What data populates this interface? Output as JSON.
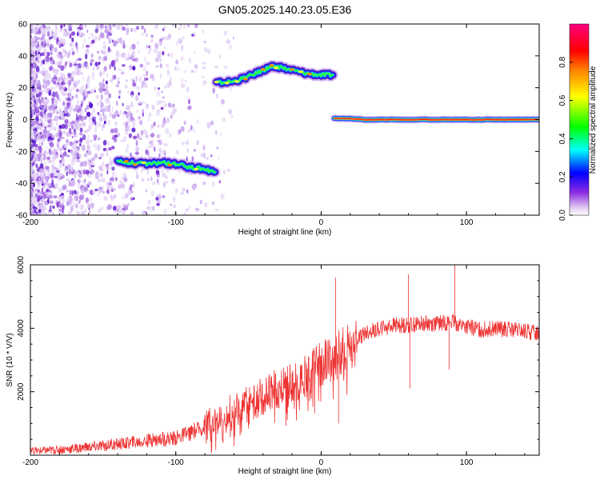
{
  "title": "GN05.2025.140.23.05.E36",
  "chart_data": [
    {
      "type": "heatmap",
      "xlabel": "Height of straight line (km)",
      "ylabel": "Frequency (Hz)",
      "xlim": [
        -200,
        150
      ],
      "ylim": [
        -60,
        60
      ],
      "xticks": [
        -200,
        -100,
        0,
        100
      ],
      "yticks": [
        -60,
        -40,
        -20,
        0,
        20,
        40,
        60
      ],
      "colorbar": {
        "label": "Normalized spectral amplitude",
        "range": [
          0,
          1
        ],
        "ticks": [
          "0.0",
          "0.2",
          "0.4",
          "0.6",
          "0.8"
        ],
        "colormap": [
          "#ffffff",
          "#e6d0f5",
          "#8a2be2",
          "#0000ff",
          "#00ffff",
          "#00ff00",
          "#ffff00",
          "#ff8000",
          "#ff0000",
          "#ff0080"
        ]
      },
      "tracks": [
        {
          "x": [
            -140,
            -130,
            -120,
            -110,
            -100,
            -90,
            -80,
            -73
          ],
          "y": [
            -26,
            -27,
            -28,
            -27,
            -28,
            -30,
            -31,
            -33
          ]
        },
        {
          "x": [
            -72,
            -60,
            -50,
            -40,
            -35,
            -30,
            -20,
            -10,
            0,
            8
          ],
          "y": [
            23,
            24,
            27,
            31,
            33,
            33,
            31,
            29,
            28,
            28
          ]
        },
        {
          "x": [
            9,
            30,
            60,
            90,
            120,
            150
          ],
          "y": [
            1,
            0,
            0,
            0,
            0,
            0
          ]
        }
      ]
    },
    {
      "type": "line",
      "xlabel": "Height of straight line (km)",
      "ylabel": "SNR (10 * V/V)",
      "xlim": [
        -200,
        150
      ],
      "ylim": [
        0,
        6000
      ],
      "xticks": [
        -200,
        -100,
        0,
        100
      ],
      "yticks": [
        2000,
        4000,
        6000
      ],
      "color": "#ee3333",
      "x": [
        -200,
        -180,
        -160,
        -140,
        -120,
        -100,
        -90,
        -80,
        -70,
        -60,
        -50,
        -40,
        -30,
        -20,
        -10,
        0,
        10,
        20,
        30,
        40,
        50,
        60,
        70,
        80,
        90,
        100,
        110,
        120,
        130,
        140,
        150
      ],
      "y": [
        120,
        180,
        250,
        350,
        450,
        550,
        700,
        900,
        1200,
        1400,
        1650,
        1850,
        2100,
        2250,
        2500,
        2900,
        3100,
        3450,
        3850,
        4000,
        4100,
        4100,
        4150,
        4150,
        4200,
        4050,
        3950,
        4000,
        3950,
        3900,
        3850
      ],
      "spikes": [
        {
          "x": 10,
          "y": 5600
        },
        {
          "x": 60,
          "y": 5700
        },
        {
          "x": 61,
          "y": 2100
        },
        {
          "x": 92,
          "y": 6000
        },
        {
          "x": 88,
          "y": 2700
        },
        {
          "x": 12,
          "y": 1000
        }
      ]
    }
  ]
}
